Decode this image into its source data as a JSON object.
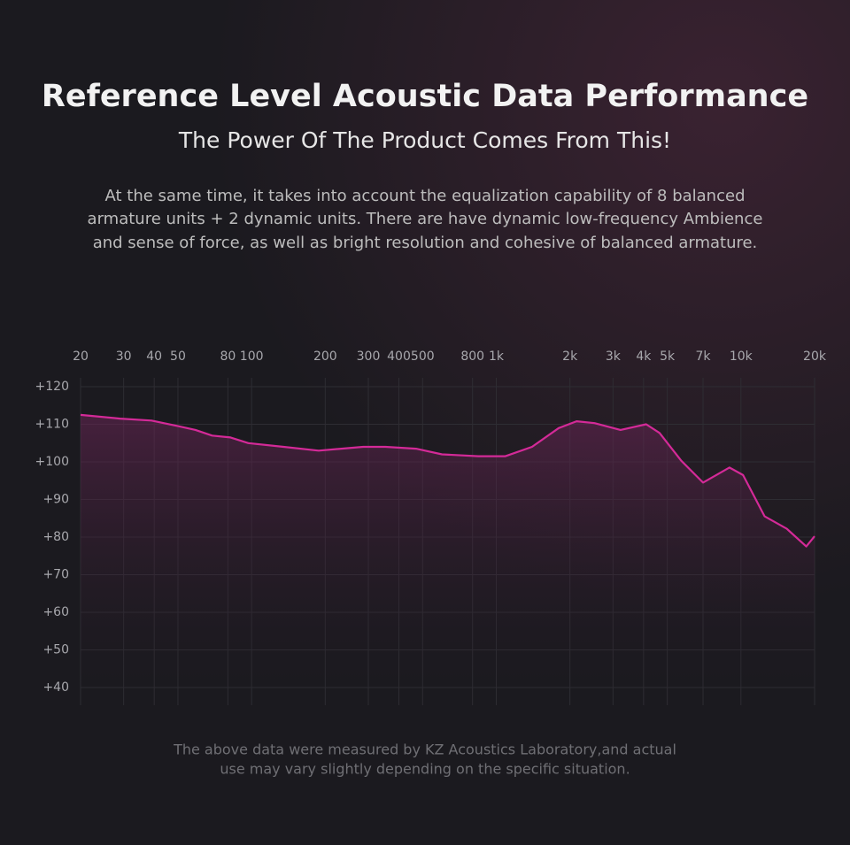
{
  "chart_data": {
    "type": "line",
    "title": "Reference Level Acoustic Data Performance",
    "subtitle": "The Power Of The Product Comes From This!",
    "description": [
      "At the same time, it takes into account the equalization capability of 8 balanced",
      "armature units + 2 dynamic units. There are have dynamic low-frequency Ambience",
      "and sense of force, as well as bright resolution and cohesive of balanced armature."
    ],
    "footnote": [
      "The above data were measured by KZ Acoustics Laboratory,and actual",
      "use may vary slightly depending on the specific situation."
    ],
    "xscale": "log",
    "xlim": [
      20,
      20000
    ],
    "xticks": [
      20,
      30,
      40,
      50,
      80,
      100,
      200,
      300,
      400,
      500,
      800,
      {
        "value": 1000,
        "label": "1k"
      },
      {
        "value": 2000,
        "label": "2k"
      },
      {
        "value": 3000,
        "label": "3k"
      },
      {
        "value": 4000,
        "label": "4k"
      },
      {
        "value": 5000,
        "label": "5k"
      },
      {
        "value": 7000,
        "label": "7k"
      },
      {
        "value": 10000,
        "label": "10k"
      },
      {
        "value": 20000,
        "label": "20k"
      }
    ],
    "ylim": [
      40,
      120
    ],
    "yticks": [
      {
        "value": 120,
        "label": "+120"
      },
      {
        "value": 110,
        "label": "+110"
      },
      {
        "value": 100,
        "label": "+100"
      },
      {
        "value": 90,
        "label": "+90"
      },
      {
        "value": 80,
        "label": "+80"
      },
      {
        "value": 70,
        "label": "+70"
      },
      {
        "value": 60,
        "label": "+60"
      },
      {
        "value": 50,
        "label": "+50"
      },
      {
        "value": 40,
        "label": "+40"
      }
    ],
    "grid": true,
    "color": "#d42a98",
    "x": [
      20,
      29,
      39,
      50,
      59,
      69,
      82,
      97,
      135,
      188,
      286,
      352,
      470,
      600,
      845,
      1090,
      1400,
      1800,
      2130,
      2520,
      3220,
      4100,
      4650,
      5700,
      7000,
      8970,
      10200,
      12500,
      15400,
      18500,
      20000
    ],
    "values": [
      112.5,
      111.5,
      111,
      109.5,
      108.5,
      107,
      106.5,
      105,
      104,
      103,
      104,
      104,
      103.5,
      102,
      101.5,
      101.5,
      104,
      109,
      110.8,
      110.3,
      108.5,
      110,
      107.7,
      100.3,
      94.5,
      98.5,
      96.5,
      85.5,
      82.2,
      77.5,
      80.2
    ]
  }
}
